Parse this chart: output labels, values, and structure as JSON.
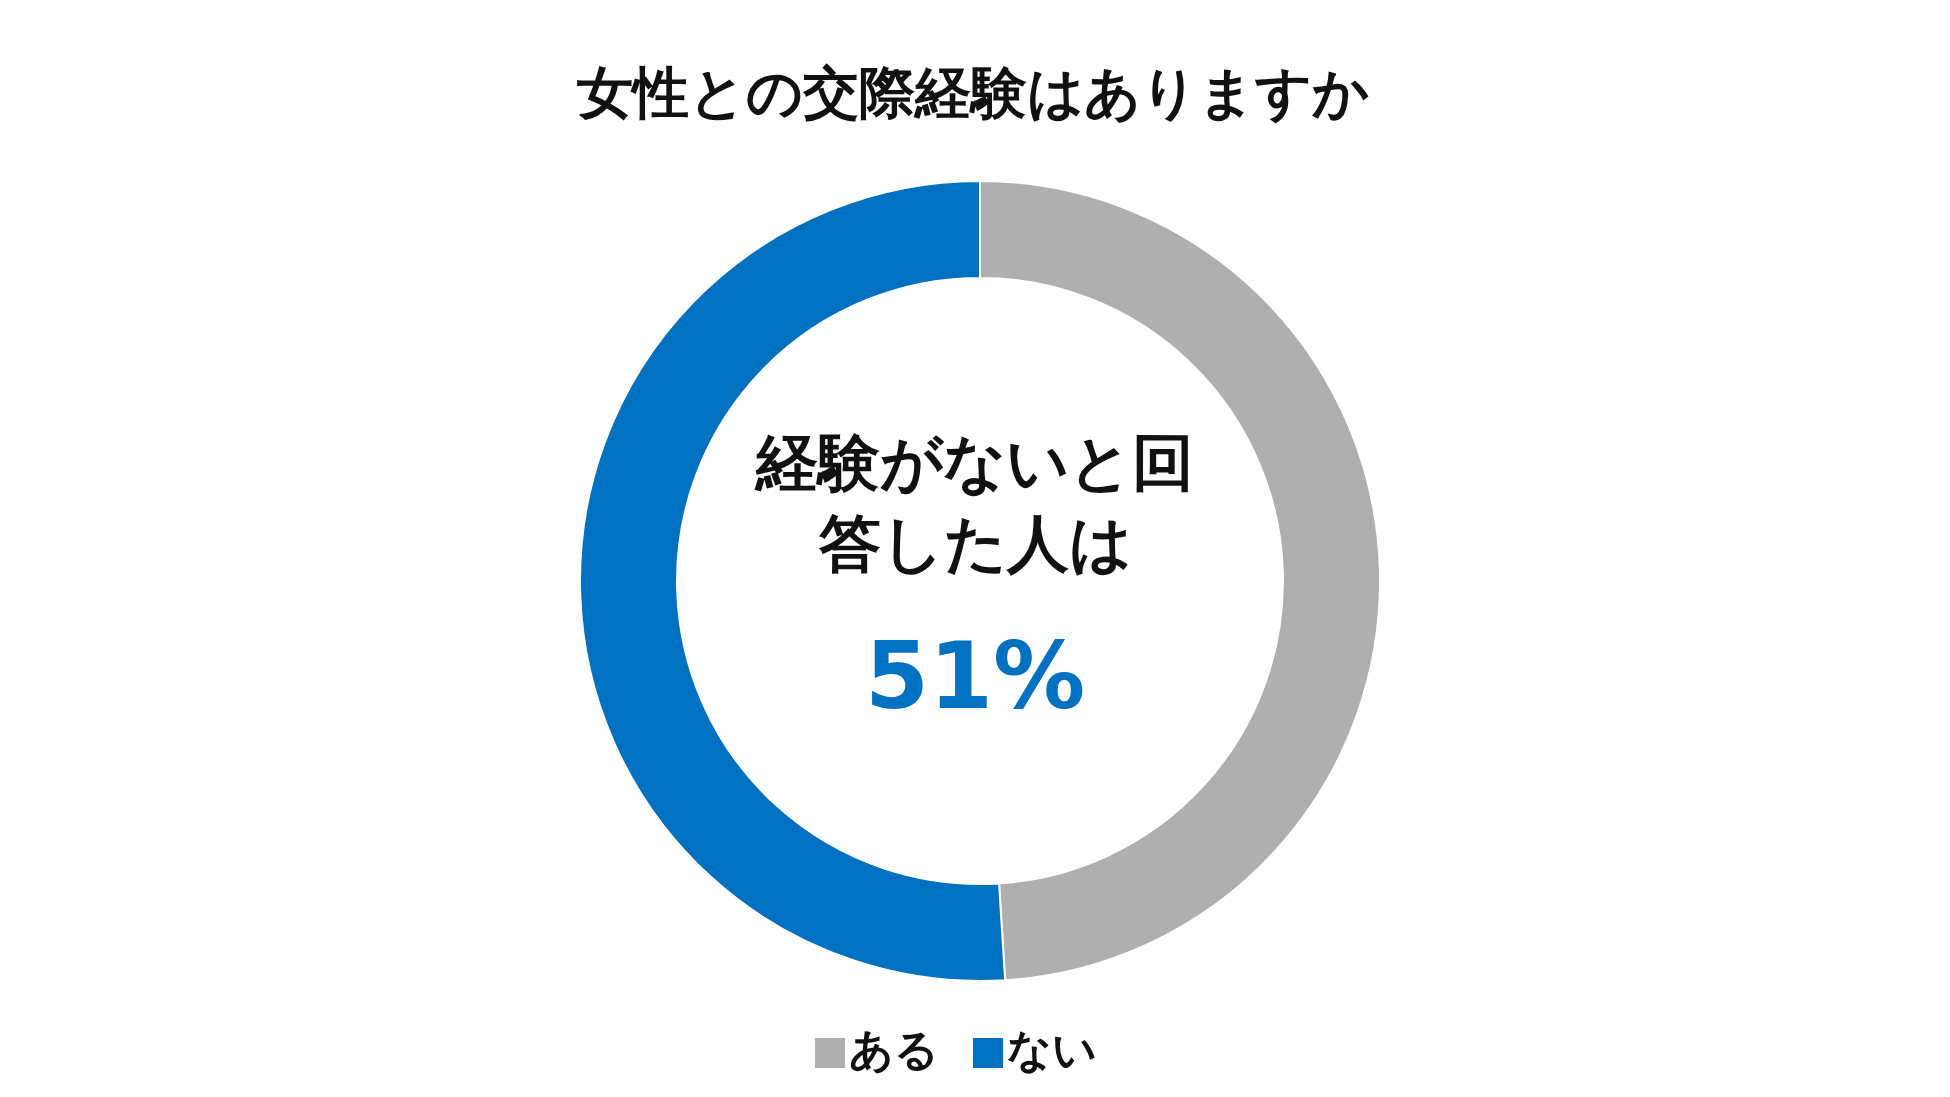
{
  "chart_data": {
    "type": "donut",
    "title": "女性との交際経験はありますか",
    "categories": [
      "ある",
      "ない"
    ],
    "values": [
      49,
      51
    ],
    "colors": [
      "#afafaf",
      "#0070c0"
    ],
    "legend": "bottom",
    "annotations": [
      "経験がないと回答した人は",
      "51%"
    ]
  }
}
